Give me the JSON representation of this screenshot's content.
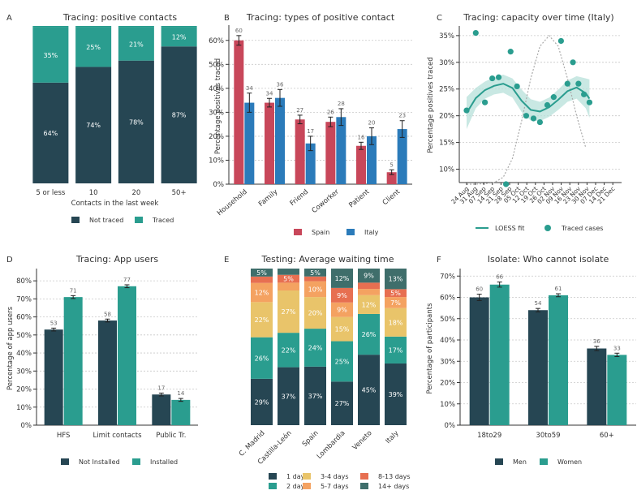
{
  "colors": {
    "dark": "#264653",
    "teal": "#2a9d8f",
    "red": "#c8475a",
    "blue": "#2b7bba",
    "yellow": "#e9c46a",
    "lorange": "#f4a261",
    "orange": "#e76f51",
    "grid": "#c8c8c8",
    "axis": "#333333",
    "text": "#333333",
    "band": "#b7e0da"
  },
  "chart_data": [
    {
      "letter": "A",
      "type": "bar",
      "stacked": true,
      "title": "Tracing: positive contacts",
      "xlabel": "Contacts in the last week",
      "categories": [
        "5 or less",
        "10",
        "20",
        "50+"
      ],
      "series": [
        {
          "name": "Not traced",
          "values": [
            64,
            74,
            78,
            87
          ],
          "labels": [
            "64%",
            "74%",
            "78%",
            "87%"
          ]
        },
        {
          "name": "Traced",
          "values": [
            35,
            25,
            21,
            12
          ],
          "labels": [
            "35%",
            "25%",
            "21%",
            "12%"
          ]
        }
      ],
      "ylim": [
        0,
        100
      ],
      "legend": "bottom"
    },
    {
      "letter": "B",
      "type": "bar",
      "title": "Tracing: types of positive contact",
      "ylabel": "Percentage positives traced",
      "categories": [
        "Household",
        "Family",
        "Friend",
        "Coworker",
        "Patient",
        "Client"
      ],
      "yticks": [
        "0%",
        "10%",
        "20%",
        "30%",
        "40%",
        "50%",
        "60%"
      ],
      "ylim": [
        0,
        65
      ],
      "series": [
        {
          "name": "Spain",
          "values": [
            60,
            34,
            27,
            26,
            16,
            5
          ],
          "labels": [
            "60",
            "34",
            "27",
            "26",
            "16",
            "5"
          ],
          "err": [
            2.0,
            1.8,
            1.8,
            2.0,
            1.5,
            1.0
          ]
        },
        {
          "name": "Italy",
          "values": [
            34,
            36,
            17,
            28,
            20,
            23
          ],
          "labels": [
            "34",
            "36",
            "17",
            "28",
            "20",
            "23"
          ],
          "err": [
            4.0,
            3.5,
            3.0,
            3.5,
            3.5,
            3.5
          ]
        }
      ],
      "legend": "bottom"
    },
    {
      "letter": "C",
      "type": "scatter",
      "title": "Tracing: capacity over time (Italy)",
      "ylabel": "Percentage positives traced",
      "x": [
        "24 Aug",
        "31 Aug",
        "07 Sep",
        "14 Sep",
        "21 Sep",
        "28 Sep",
        "05 Oct",
        "12 Oct",
        "19 Oct",
        "26 Oct",
        "02 Nov",
        "09 Nov",
        "16 Nov",
        "23 Nov",
        "30 Nov",
        "07 Dec",
        "14 Dec",
        "21 Dec"
      ],
      "yticks": [
        "10%",
        "15%",
        "20%",
        "25%",
        "30%",
        "35%"
      ],
      "ylim": [
        7.5,
        36.5
      ],
      "points": [
        {
          "x": 0.0,
          "y": 21
        },
        {
          "x": 1.0,
          "y": 35.5
        },
        {
          "x": 2.0,
          "y": 22.5
        },
        {
          "x": 2.8,
          "y": 27
        },
        {
          "x": 3.5,
          "y": 27.2
        },
        {
          "x": 4.3,
          "y": 7.2
        },
        {
          "x": 4.8,
          "y": 32
        },
        {
          "x": 5.5,
          "y": 25.5
        },
        {
          "x": 6.5,
          "y": 20
        },
        {
          "x": 7.3,
          "y": 19.5
        },
        {
          "x": 8.0,
          "y": 18.8
        },
        {
          "x": 8.8,
          "y": 22
        },
        {
          "x": 9.5,
          "y": 23.5
        },
        {
          "x": 10.3,
          "y": 34
        },
        {
          "x": 11.0,
          "y": 26
        },
        {
          "x": 11.6,
          "y": 30
        },
        {
          "x": 12.2,
          "y": 26
        },
        {
          "x": 12.8,
          "y": 24
        },
        {
          "x": 13.4,
          "y": 22.5
        }
      ],
      "fit": {
        "x": [
          0,
          1,
          2,
          3,
          4,
          5,
          6,
          7,
          8,
          9,
          10,
          11,
          12,
          13,
          13.4
        ],
        "y": [
          20.5,
          23.3,
          24.8,
          25.6,
          26.0,
          25.2,
          22.8,
          21.1,
          20.8,
          21.6,
          23.0,
          24.6,
          25.3,
          24.2,
          23.2
        ]
      },
      "band": {
        "upper": [
          23.5,
          25.2,
          26.4,
          27.2,
          27.7,
          27.0,
          24.9,
          23.1,
          22.6,
          23.4,
          24.9,
          26.6,
          27.4,
          27.0,
          26.8
        ],
        "lower": [
          17.5,
          21.4,
          23.2,
          24.0,
          24.3,
          23.4,
          20.7,
          19.1,
          19.0,
          19.8,
          21.1,
          22.6,
          23.2,
          21.4,
          19.6
        ]
      },
      "trend": {
        "x": [
          0,
          1,
          2,
          3,
          4,
          5,
          6,
          7,
          8,
          9,
          10,
          11,
          12,
          13
        ],
        "y": [
          7.2,
          7.2,
          7.3,
          7.5,
          8.5,
          12,
          19,
          27,
          33,
          35,
          33,
          27,
          20,
          14
        ]
      },
      "legend_labels": [
        "LOESS fit",
        "Traced cases"
      ],
      "legend": "bottom"
    },
    {
      "letter": "D",
      "type": "bar",
      "title": "Tracing: App users",
      "ylabel": "Percentage of app users",
      "categories": [
        "HFS",
        "Limit contacts",
        "Public Tr."
      ],
      "yticks": [
        "0%",
        "10%",
        "20%",
        "30%",
        "40%",
        "50%",
        "60%",
        "70%",
        "80%"
      ],
      "ylim": [
        0,
        85
      ],
      "series": [
        {
          "name": "Not Installed",
          "values": [
            53,
            58,
            17
          ],
          "labels": [
            "53",
            "58",
            "17"
          ],
          "err": [
            0.8,
            0.8,
            0.8
          ]
        },
        {
          "name": "Installed",
          "values": [
            71,
            77,
            14
          ],
          "labels": [
            "71",
            "77",
            "14"
          ],
          "err": [
            0.8,
            0.8,
            0.8
          ]
        }
      ],
      "legend": "bottom"
    },
    {
      "letter": "E",
      "type": "bar",
      "stacked": true,
      "title": "Testing: Average waiting time",
      "categories": [
        "C. Madrid",
        "Castilla-León",
        "Spain",
        "Lombardia",
        "Veneto",
        "Italy"
      ],
      "series": [
        {
          "name": "1 day",
          "values": [
            29,
            37,
            37,
            27,
            45,
            39
          ],
          "labels": [
            "29%",
            "37%",
            "37%",
            "27%",
            "45%",
            "39%"
          ]
        },
        {
          "name": "2 days",
          "values": [
            26,
            22,
            24,
            25,
            26,
            17
          ],
          "labels": [
            "26%",
            "22%",
            "24%",
            "25%",
            "26%",
            "17%"
          ]
        },
        {
          "name": "3-4 days",
          "values": [
            22,
            27,
            20,
            15,
            12,
            18
          ],
          "labels": [
            "22%",
            "27%",
            "20%",
            "15%",
            "12%",
            "18%"
          ]
        },
        {
          "name": "5-7 days",
          "values": [
            12,
            5,
            10,
            9,
            4,
            7
          ],
          "labels": [
            "12%",
            "",
            "10%",
            "9%",
            "",
            "7%"
          ]
        },
        {
          "name": "8-13 days",
          "values": [
            4,
            5,
            3,
            9,
            4,
            5
          ],
          "labels": [
            "",
            "5%",
            "",
            "9%",
            "",
            "5%"
          ]
        },
        {
          "name": "14+ days",
          "values": [
            5,
            4,
            5,
            12,
            9,
            13
          ],
          "labels": [
            "5%",
            "",
            "5%",
            "12%",
            "9%",
            "13%"
          ]
        }
      ],
      "ylim": [
        0,
        100
      ],
      "legend": "bottom"
    },
    {
      "letter": "F",
      "type": "bar",
      "title": "Isolate: Who cannot isolate",
      "ylabel": "Percentage of participants",
      "categories": [
        "18to29",
        "30to59",
        "60+"
      ],
      "yticks": [
        "0%",
        "10%",
        "20%",
        "30%",
        "40%",
        "50%",
        "60%",
        "70%"
      ],
      "ylim": [
        0,
        72
      ],
      "series": [
        {
          "name": "Men",
          "values": [
            60,
            54,
            36
          ],
          "labels": [
            "60",
            "54",
            "36"
          ],
          "err": [
            1.5,
            0.8,
            1.0
          ]
        },
        {
          "name": "Women",
          "values": [
            66,
            61,
            33
          ],
          "labels": [
            "66",
            "61",
            "33"
          ],
          "err": [
            1.2,
            0.7,
            0.8
          ]
        }
      ],
      "legend": "bottom"
    }
  ]
}
